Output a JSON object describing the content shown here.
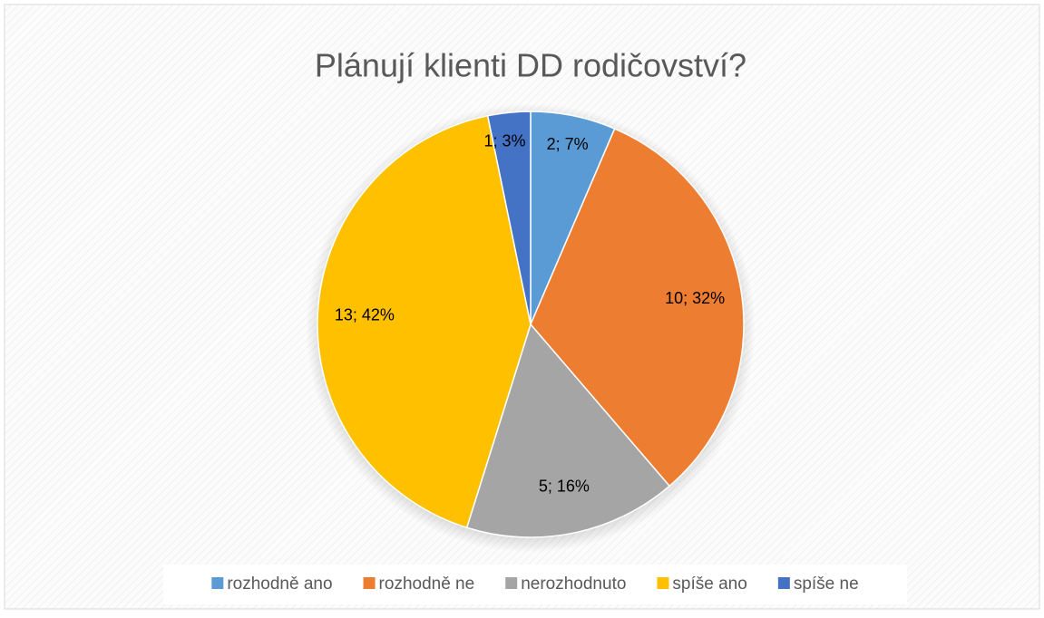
{
  "chart_data": {
    "type": "pie",
    "title": "Plánují klienti DD rodičovství?",
    "categories": [
      "rozhodně ano",
      "rozhodně ne",
      "nerozhodnuto",
      "spíše ano",
      "spíše ne"
    ],
    "values": [
      2,
      10,
      5,
      13,
      1
    ],
    "value_labels": [
      "2; 7%",
      "10; 32%",
      "5; 16%",
      "13; 42%",
      "1; 3%"
    ],
    "colors": [
      "#5b9bd5",
      "#ed7d31",
      "#a5a5a5",
      "#ffc000",
      "#4472c4"
    ],
    "legend": "bottom"
  }
}
